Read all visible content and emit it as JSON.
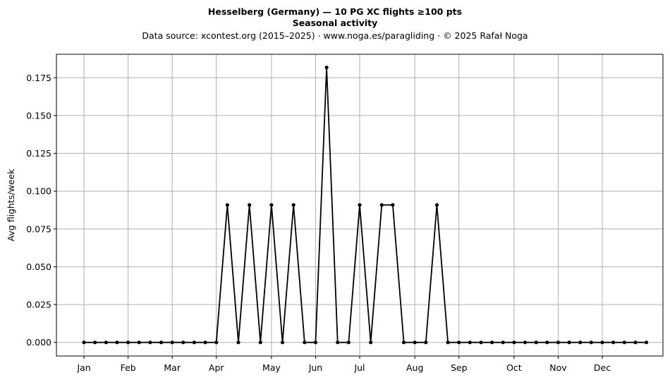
{
  "chart_data": {
    "type": "line",
    "title": "Hesselberg (Germany)  —  10 PG XC flights ≥100 pts",
    "subtitle": "Seasonal activity",
    "source": "Data source: xcontest.org (2015–2025)  ·  www.noga.es/paragliding  ·  © 2025 Rafał Noga",
    "xlabel": "",
    "ylabel": "Avg flights/week",
    "xlim": [
      -1.5,
      53.5
    ],
    "ylim": [
      -0.009,
      0.1905
    ],
    "yticks": [
      0.0,
      0.025,
      0.05,
      0.075,
      0.1,
      0.125,
      0.15,
      0.175
    ],
    "ytick_labels": [
      "0.000",
      "0.025",
      "0.050",
      "0.075",
      "0.100",
      "0.125",
      "0.150",
      "0.175"
    ],
    "xticks": [
      {
        "label": "Jan",
        "week": 1
      },
      {
        "label": "Feb",
        "week": 5
      },
      {
        "label": "Mar",
        "week": 9
      },
      {
        "label": "Apr",
        "week": 13
      },
      {
        "label": "May",
        "week": 18
      },
      {
        "label": "Jun",
        "week": 22
      },
      {
        "label": "Jul",
        "week": 26
      },
      {
        "label": "Aug",
        "week": 31
      },
      {
        "label": "Sep",
        "week": 35
      },
      {
        "label": "Oct",
        "week": 40
      },
      {
        "label": "Nov",
        "week": 44
      },
      {
        "label": "Dec",
        "week": 48
      }
    ],
    "grid": true,
    "legend": false,
    "line_color": "#000000",
    "series": [
      {
        "x": [
          1,
          2,
          3,
          4,
          5,
          6,
          7,
          8,
          9,
          10,
          11,
          12,
          13,
          14,
          15,
          16,
          17,
          18,
          19,
          20,
          21,
          22,
          23,
          24,
          25,
          26,
          27,
          28,
          29,
          30,
          31,
          32,
          33,
          34,
          35,
          36,
          37,
          38,
          39,
          40,
          41,
          42,
          43,
          44,
          45,
          46,
          47,
          48,
          49,
          50,
          51,
          52
        ],
        "values": [
          0,
          0,
          0,
          0,
          0,
          0,
          0,
          0,
          0,
          0,
          0,
          0,
          0,
          0.0909,
          0,
          0.0909,
          0,
          0.0909,
          0,
          0.0909,
          0,
          0,
          0.1818,
          0,
          0,
          0.0909,
          0,
          0.0909,
          0.0909,
          0,
          0,
          0,
          0.0909,
          0,
          0,
          0,
          0,
          0,
          0,
          0,
          0,
          0,
          0,
          0,
          0,
          0,
          0,
          0,
          0,
          0,
          0,
          0
        ]
      }
    ]
  }
}
